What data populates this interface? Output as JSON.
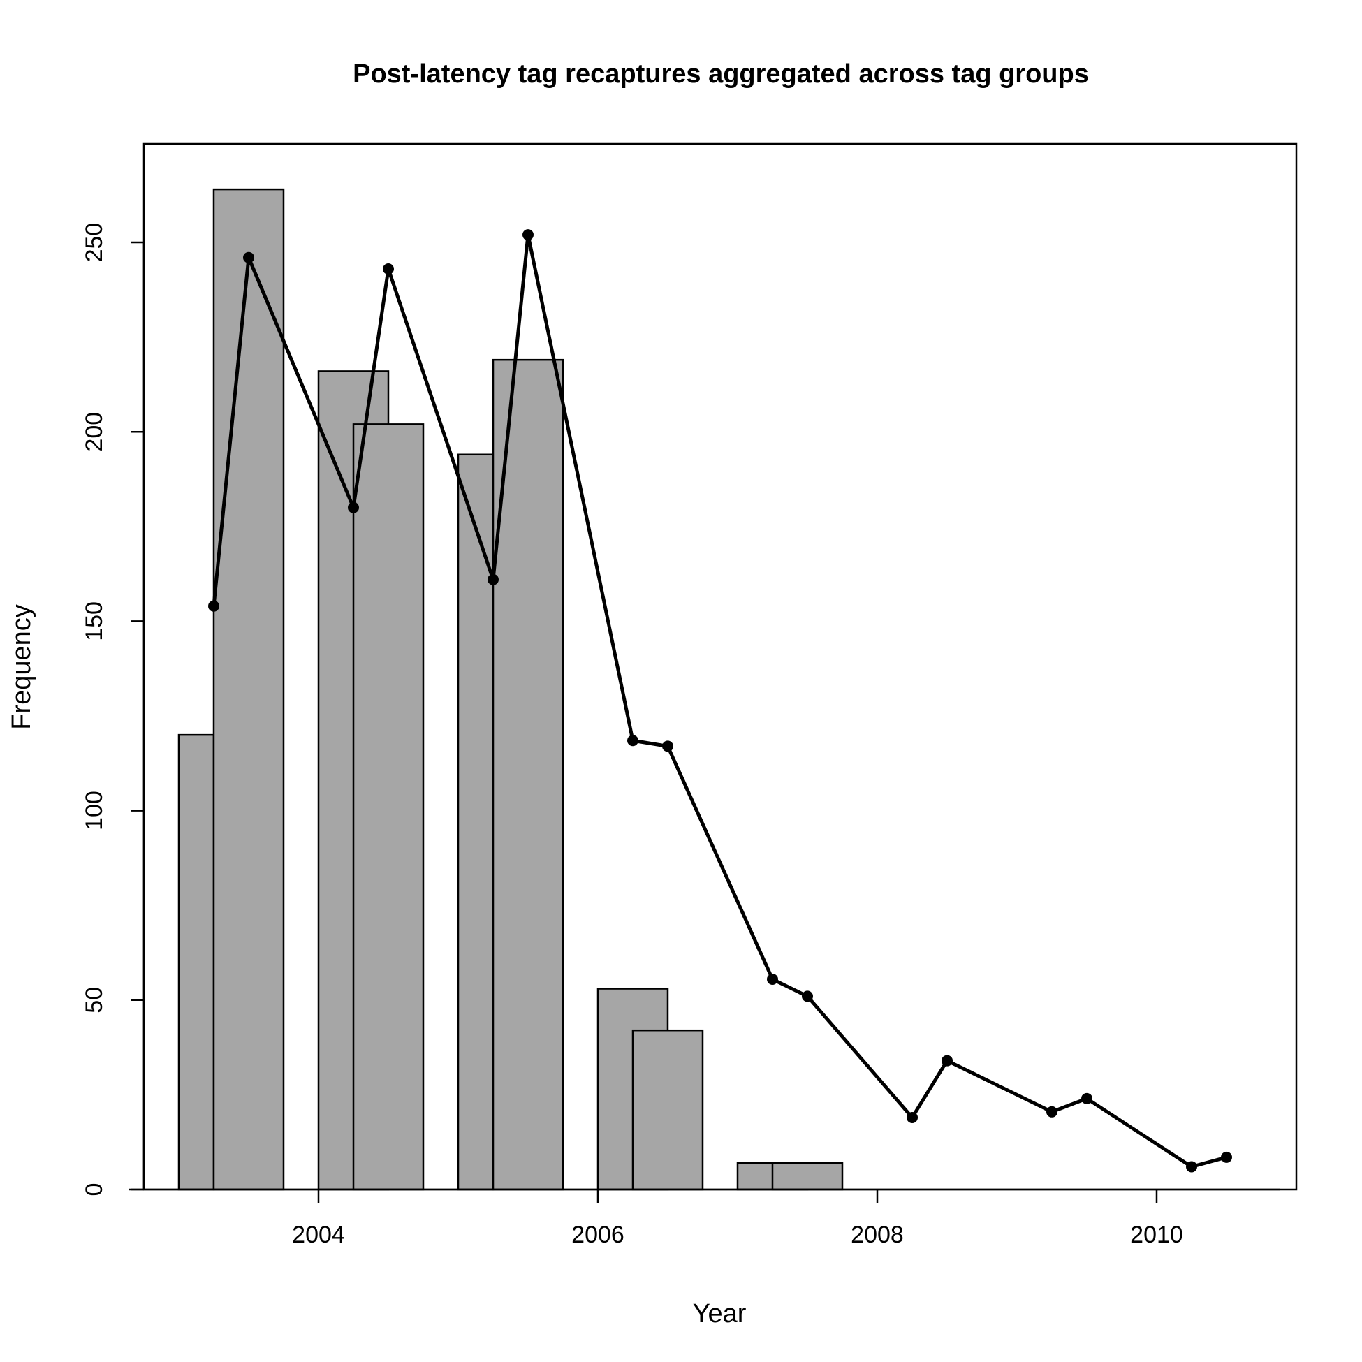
{
  "chart_data": {
    "type": "bar",
    "title": "Post-latency tag recaptures aggregated across tag groups",
    "xlabel": "Year",
    "ylabel": "Frequency",
    "xlim": [
      2002.75,
      2011.0
    ],
    "ylim": [
      0,
      276
    ],
    "x_ticks": [
      2004,
      2006,
      2008,
      2010
    ],
    "x_tick_labels": [
      "2004",
      "2006",
      "2008",
      "2010"
    ],
    "y_ticks": [
      0,
      50,
      100,
      150,
      200,
      250
    ],
    "y_tick_labels": [
      "0",
      "50",
      "100",
      "150",
      "200",
      "250"
    ],
    "grid": false,
    "legend": "none",
    "colors": {
      "bar_fill": "#a6a6a6",
      "stroke": "#000000",
      "background": "#ffffff"
    },
    "bars": [
      {
        "x0": 2003.0,
        "x1": 2003.25,
        "value": 120
      },
      {
        "x0": 2003.25,
        "x1": 2003.75,
        "value": 264
      },
      {
        "x0": 2004.0,
        "x1": 2004.5,
        "value": 216
      },
      {
        "x0": 2004.25,
        "x1": 2004.75,
        "value": 202
      },
      {
        "x0": 2005.0,
        "x1": 2005.25,
        "value": 194
      },
      {
        "x0": 2005.25,
        "x1": 2005.75,
        "value": 219
      },
      {
        "x0": 2006.0,
        "x1": 2006.5,
        "value": 53
      },
      {
        "x0": 2006.25,
        "x1": 2006.75,
        "value": 42
      },
      {
        "x0": 2007.0,
        "x1": 2007.5,
        "value": 7
      },
      {
        "x0": 2007.25,
        "x1": 2007.75,
        "value": 7
      },
      {
        "x0": 2008.0,
        "x1": 2008.5,
        "value": 0
      },
      {
        "x0": 2008.25,
        "x1": 2008.75,
        "value": 0
      },
      {
        "x0": 2009.0,
        "x1": 2009.5,
        "value": 0
      },
      {
        "x0": 2009.25,
        "x1": 2009.75,
        "value": 0
      },
      {
        "x0": 2010.0,
        "x1": 2010.5,
        "value": 0
      },
      {
        "x0": 2010.25,
        "x1": 2010.75,
        "value": 0
      }
    ],
    "series": [
      {
        "type": "line",
        "x": [
          2003.25,
          2003.5,
          2004.25,
          2004.5,
          2005.25,
          2005.5,
          2006.25,
          2006.5,
          2007.25,
          2007.5,
          2008.25,
          2008.5,
          2009.25,
          2009.5,
          2010.25,
          2010.5
        ],
        "values": [
          154,
          246,
          180,
          243,
          161,
          252,
          118.5,
          117,
          55.5,
          51,
          19,
          34,
          20.5,
          24,
          6,
          8.5
        ]
      }
    ]
  }
}
